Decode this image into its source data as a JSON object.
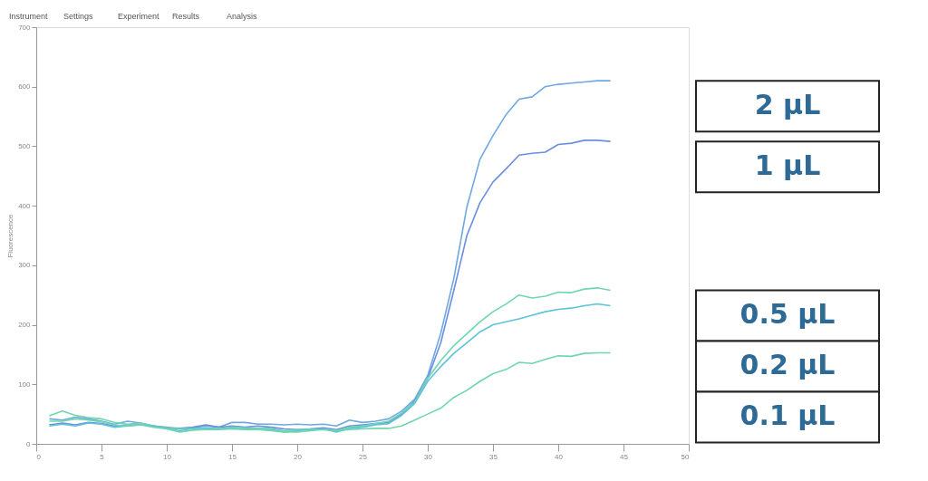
{
  "chart_data": {
    "type": "line",
    "ylabel": "Fluorescence",
    "annotations": [
      "Instrument",
      "Settings",
      "Experiment",
      "Results",
      "Analysis"
    ],
    "x": [
      1,
      2,
      3,
      4,
      5,
      6,
      7,
      8,
      9,
      10,
      11,
      12,
      13,
      14,
      15,
      16,
      17,
      18,
      19,
      20,
      21,
      22,
      23,
      24,
      25,
      26,
      27,
      28,
      29,
      30,
      31,
      32,
      33,
      34,
      35,
      36,
      37,
      38,
      39,
      40,
      41,
      42,
      43,
      44
    ],
    "series": [
      {
        "name": "2 µL",
        "color": "#6fa8e0",
        "values": [
          42,
          40,
          45,
          42,
          38,
          33,
          38,
          35,
          30,
          28,
          25,
          27,
          30,
          28,
          36,
          36,
          33,
          33,
          32,
          33,
          32,
          33,
          30,
          40,
          36,
          38,
          42,
          55,
          75,
          115,
          186,
          278,
          398,
          478,
          518,
          553,
          579,
          583,
          600,
          604,
          606,
          608,
          610,
          610
        ]
      },
      {
        "name": "1 µL",
        "color": "#6a8fe0",
        "values": [
          32,
          35,
          32,
          36,
          34,
          30,
          32,
          32,
          30,
          27,
          26,
          28,
          32,
          28,
          30,
          28,
          30,
          28,
          25,
          24,
          25,
          27,
          24,
          30,
          32,
          34,
          36,
          50,
          72,
          110,
          170,
          258,
          350,
          405,
          440,
          462,
          485,
          488,
          490,
          503,
          505,
          510,
          510,
          508
        ]
      },
      {
        "name": "0.5 µL",
        "color": "#6fd6b0",
        "values": [
          47,
          55,
          48,
          44,
          42,
          36,
          33,
          35,
          30,
          27,
          25,
          26,
          27,
          25,
          28,
          27,
          26,
          26,
          22,
          24,
          25,
          24,
          22,
          28,
          30,
          34,
          38,
          52,
          70,
          110,
          140,
          165,
          185,
          205,
          222,
          235,
          250,
          245,
          248,
          255,
          254,
          260,
          262,
          258
        ]
      },
      {
        "name": "0.2 µL",
        "color": "#5cc3d8",
        "values": [
          30,
          33,
          30,
          35,
          33,
          28,
          30,
          32,
          30,
          26,
          22,
          26,
          26,
          25,
          26,
          25,
          24,
          24,
          20,
          22,
          24,
          25,
          20,
          26,
          28,
          32,
          34,
          48,
          68,
          105,
          130,
          152,
          170,
          188,
          200,
          205,
          210,
          216,
          222,
          226,
          228,
          232,
          235,
          232
        ]
      },
      {
        "name": "0.1 µL",
        "color": "#6fd6b0",
        "values": [
          38,
          38,
          42,
          40,
          37,
          32,
          30,
          32,
          28,
          25,
          20,
          23,
          24,
          24,
          25,
          24,
          24,
          22,
          20,
          20,
          22,
          24,
          22,
          24,
          25,
          26,
          26,
          30,
          40,
          50,
          60,
          78,
          90,
          105,
          118,
          125,
          137,
          135,
          142,
          148,
          147,
          152,
          153,
          153
        ]
      }
    ],
    "xlim": [
      0,
      50
    ],
    "xticks": [
      0,
      5,
      10,
      15,
      20,
      25,
      30,
      35,
      40,
      45,
      50
    ],
    "ylim": [
      0,
      700
    ],
    "yticks": [
      0,
      100,
      200,
      300,
      400,
      500,
      600,
      700
    ],
    "grid": false,
    "legend": false,
    "marker": "none",
    "line_style": "solid"
  }
}
